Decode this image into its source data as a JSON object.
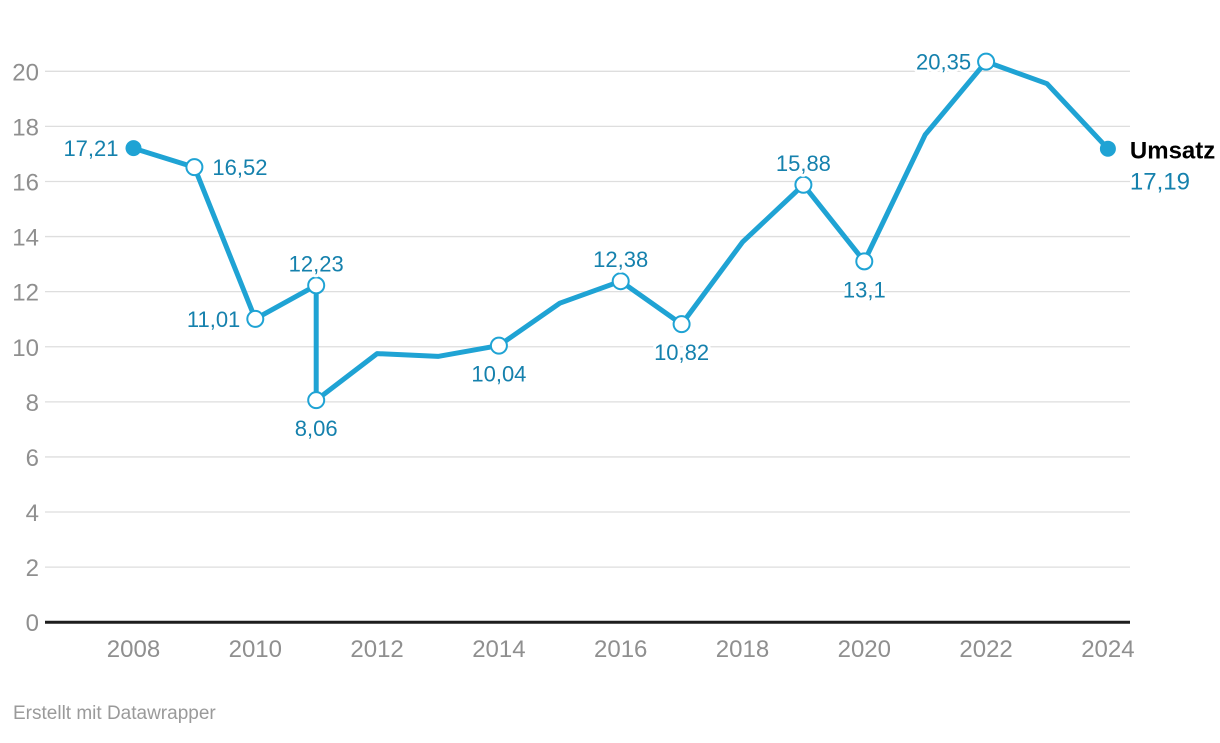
{
  "chart_data": {
    "type": "line",
    "title": "",
    "xlabel": "",
    "ylabel": "",
    "ylim": [
      0,
      21.5
    ],
    "grid": true,
    "x_ticks": [
      2008,
      2010,
      2012,
      2014,
      2016,
      2018,
      2020,
      2022,
      2024
    ],
    "y_ticks": [
      0,
      2,
      4,
      6,
      8,
      10,
      12,
      14,
      16,
      18,
      20
    ],
    "legend_position": "line-end-right",
    "series": [
      {
        "name": "Umsatz",
        "end_value_label": "17,19",
        "points": [
          {
            "x": 2008,
            "y": 17.21,
            "label": "17,21",
            "marker": "filled",
            "label_pos": "left"
          },
          {
            "x": 2009,
            "y": 16.52,
            "label": "16,52",
            "marker": "open",
            "label_pos": "right"
          },
          {
            "x": 2010,
            "y": 11.01,
            "label": "11,01",
            "marker": "open",
            "label_pos": "left"
          },
          {
            "x": 2011,
            "y": 12.23,
            "label": "12,23",
            "marker": "open",
            "label_pos": "top"
          },
          {
            "x": 2011,
            "y": 8.06,
            "label": "8,06",
            "marker": "open",
            "label_pos": "bottom"
          },
          {
            "x": 2012,
            "y": 9.75
          },
          {
            "x": 2013,
            "y": 9.65
          },
          {
            "x": 2014,
            "y": 10.04,
            "label": "10,04",
            "marker": "open",
            "label_pos": "bottom"
          },
          {
            "x": 2015,
            "y": 11.58
          },
          {
            "x": 2016,
            "y": 12.38,
            "label": "12,38",
            "marker": "open",
            "label_pos": "top"
          },
          {
            "x": 2017,
            "y": 10.82,
            "label": "10,82",
            "marker": "open",
            "label_pos": "bottom"
          },
          {
            "x": 2018,
            "y": 13.8
          },
          {
            "x": 2019,
            "y": 15.88,
            "label": "15,88",
            "marker": "open",
            "label_pos": "top"
          },
          {
            "x": 2020,
            "y": 13.1,
            "label": "13,1",
            "marker": "open",
            "label_pos": "bottom"
          },
          {
            "x": 2021,
            "y": 17.7
          },
          {
            "x": 2022,
            "y": 20.35,
            "label": "20,35",
            "marker": "open",
            "label_pos": "left"
          },
          {
            "x": 2023,
            "y": 19.55
          },
          {
            "x": 2024,
            "y": 17.19,
            "label": "17,19",
            "marker": "filled",
            "label_pos": "legend"
          }
        ]
      }
    ]
  },
  "colors": {
    "line": "#1FA3D4",
    "marker_fill_open": "#FFFFFF",
    "value_label": "#1581AD",
    "axis_text": "#8F8F8F",
    "gridline": "#DEDEDE",
    "baseline": "#1D1D1D",
    "legend_name": "#000000",
    "background": "#FFFFFF"
  },
  "footer": {
    "credit": "Erstellt mit Datawrapper"
  }
}
